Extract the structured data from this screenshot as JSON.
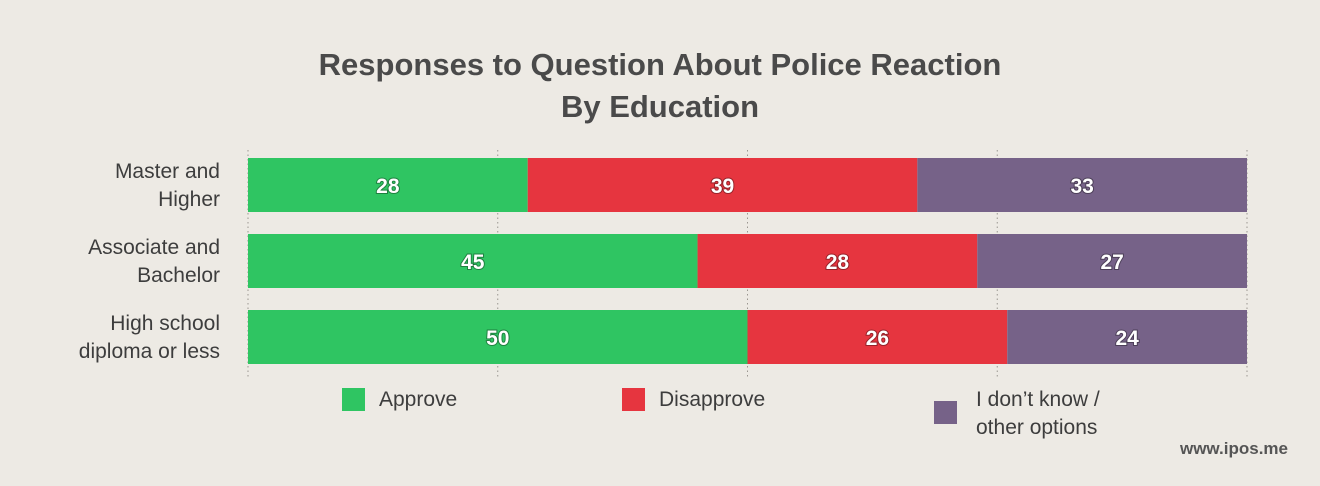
{
  "chart_data": {
    "type": "bar",
    "orientation": "horizontal",
    "stacked": true,
    "title": "Responses to Question About Police Reaction\nBy Education",
    "categories": [
      "Master and\nHigher",
      "Associate and\nBachelor",
      "High school\ndiploma or less"
    ],
    "series": [
      {
        "name": "Approve",
        "color": "#2fc562",
        "values": [
          28,
          45,
          50
        ]
      },
      {
        "name": "Disapprove",
        "color": "#e6353f",
        "values": [
          39,
          28,
          26
        ]
      },
      {
        "name": "I don’t know /\nother options",
        "color": "#766288",
        "values": [
          33,
          27,
          24
        ]
      }
    ],
    "xlim": [
      0,
      100
    ],
    "grid": true,
    "legend_position": "bottom"
  },
  "title_lines": [
    "Responses to Question About Police Reaction",
    "By Education"
  ],
  "watermark": "www.ipos.me",
  "colors": {
    "background": "#edeae4",
    "grid": "#9a9690",
    "text": "#3d3d3d"
  }
}
